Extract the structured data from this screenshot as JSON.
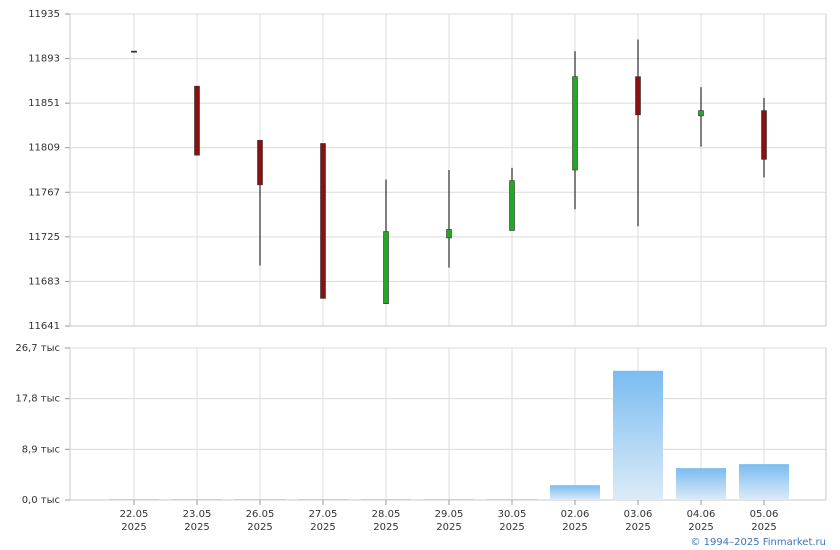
{
  "chart_data": [
    {
      "type": "candlestick",
      "open": [
        11900,
        11867,
        11816,
        11813,
        11662,
        11724,
        11731,
        11788,
        11876,
        11839,
        11844
      ],
      "high": [
        11900,
        11867,
        11816,
        11813,
        11779,
        11788,
        11790,
        11900,
        11911,
        11866,
        11856
      ],
      "low": [
        11900,
        11802,
        11698,
        11667,
        11662,
        11696,
        11731,
        11751,
        11735,
        11810,
        11781
      ],
      "close": [
        11900,
        11802,
        11774,
        11667,
        11730,
        11732,
        11778,
        11876,
        11840,
        11844,
        11798
      ],
      "up_color": "#22a822",
      "down_color": "#8b1010",
      "ylim": [
        11641,
        11935
      ],
      "yticks": [
        11641,
        11683,
        11725,
        11767,
        11809,
        11851,
        11893,
        11935
      ],
      "grid": true
    },
    {
      "type": "bar",
      "categories": [
        "22.05",
        "23.05",
        "26.05",
        "27.05",
        "28.05",
        "29.05",
        "30.05",
        "02.06",
        "03.06",
        "04.06",
        "05.06"
      ],
      "category_years": [
        "2025",
        "2025",
        "2025",
        "2025",
        "2025",
        "2025",
        "2025",
        "2025",
        "2025",
        "2025",
        "2025"
      ],
      "values": [
        150,
        150,
        150,
        150,
        150,
        150,
        150,
        2600,
        22700,
        5600,
        6300
      ],
      "color": "#7bbcf0",
      "ylim": [
        0,
        26700
      ],
      "yticks": [
        {
          "value": 0,
          "label": "0,0 тыс"
        },
        {
          "value": 8900,
          "label": "8,9 тыс"
        },
        {
          "value": 17800,
          "label": "17,8 тыс"
        },
        {
          "value": 26700,
          "label": "26,7 тыс"
        }
      ],
      "grid": true
    }
  ],
  "credit": "© 1994–2025 Finmarket.ru"
}
